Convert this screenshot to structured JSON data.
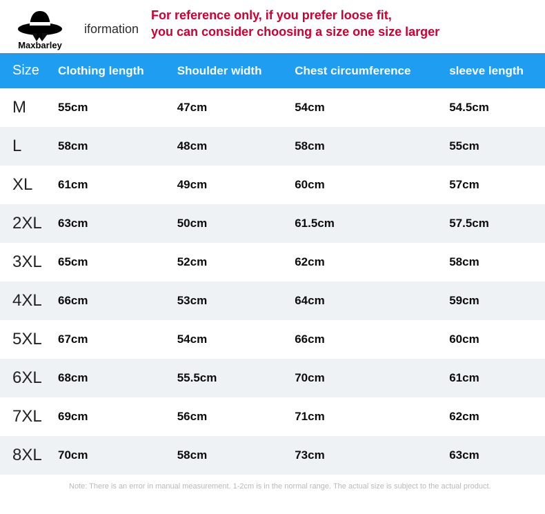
{
  "brand": "Maxbarley",
  "info_label": "iformation",
  "reference_line1": "For reference only, if you prefer loose fit,",
  "reference_line2": "you can consider choosing a size one size larger",
  "colors": {
    "header_bg": "#1f9df1",
    "header_text": "#ffffff",
    "row_odd": "#ffffff",
    "row_even": "#eef2f5",
    "ref_text": "#cc0033",
    "note_text": "#b8b8b8"
  },
  "columns": [
    "Size",
    "Clothing length",
    "Shoulder width",
    "Chest circumference",
    "sleeve length"
  ],
  "rows": [
    {
      "size": "M",
      "clothing_length": "55cm",
      "shoulder_width": "47cm",
      "chest": "54cm",
      "sleeve": "54.5cm"
    },
    {
      "size": "L",
      "clothing_length": "58cm",
      "shoulder_width": "48cm",
      "chest": "58cm",
      "sleeve": "55cm"
    },
    {
      "size": "XL",
      "clothing_length": "61cm",
      "shoulder_width": "49cm",
      "chest": "60cm",
      "sleeve": "57cm"
    },
    {
      "size": "2XL",
      "clothing_length": "63cm",
      "shoulder_width": "50cm",
      "chest": "61.5cm",
      "sleeve": "57.5cm"
    },
    {
      "size": "3XL",
      "clothing_length": "65cm",
      "shoulder_width": "52cm",
      "chest": "62cm",
      "sleeve": "58cm"
    },
    {
      "size": "4XL",
      "clothing_length": "66cm",
      "shoulder_width": "53cm",
      "chest": "64cm",
      "sleeve": "59cm"
    },
    {
      "size": "5XL",
      "clothing_length": "67cm",
      "shoulder_width": "54cm",
      "chest": "66cm",
      "sleeve": "60cm"
    },
    {
      "size": "6XL",
      "clothing_length": "68cm",
      "shoulder_width": "55.5cm",
      "chest": "70cm",
      "sleeve": "61cm"
    },
    {
      "size": "7XL",
      "clothing_length": "69cm",
      "shoulder_width": "56cm",
      "chest": "71cm",
      "sleeve": "62cm"
    },
    {
      "size": "8XL",
      "clothing_length": "70cm",
      "shoulder_width": "58cm",
      "chest": "73cm",
      "sleeve": "63cm"
    }
  ],
  "note": "Note: There is an error in manual measurement. 1-2cm is in the normal range. The actual size is subject to the actual product."
}
